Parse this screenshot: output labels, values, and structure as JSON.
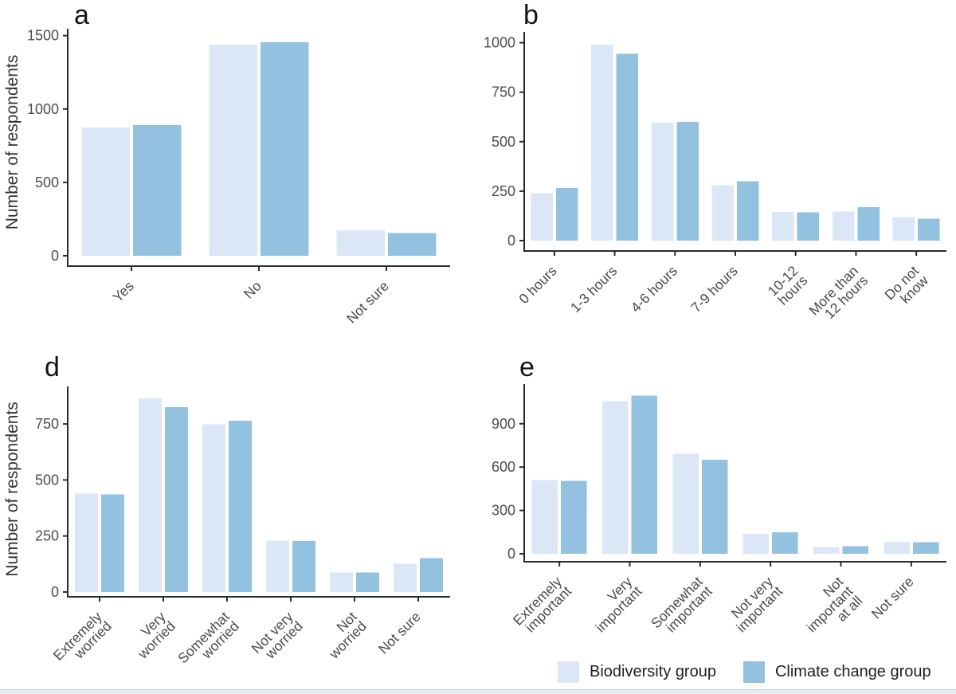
{
  "page": {
    "background": "#ffffff",
    "description": "Four grouped bar charts (panels a, b, d, e) comparing survey responses of two groups"
  },
  "colors": {
    "biodiversity": "#dbe7f6",
    "climate": "#93c1e0",
    "axis": "#2b2b2b",
    "tick_label": "#4d4d4d",
    "axis_title": "#333333"
  },
  "legend": {
    "items": [
      {
        "label": "Biodiversity group",
        "color_key": "biodiversity"
      },
      {
        "label": "Climate change group",
        "color_key": "climate"
      }
    ]
  },
  "chart_data": [
    {
      "panel_label": "a",
      "type": "bar",
      "ylabel": "Number of respondents",
      "categories": [
        [
          "Yes"
        ],
        [
          "No"
        ],
        [
          "Not sure"
        ]
      ],
      "series": [
        {
          "name": "Biodiversity group",
          "values": [
            875,
            1440,
            175
          ]
        },
        {
          "name": "Climate change group",
          "values": [
            890,
            1455,
            155
          ]
        }
      ],
      "yticks": [
        0,
        500,
        1000,
        1500
      ],
      "ylim": [
        0,
        1580
      ],
      "grid": false,
      "legend_position": "shared-bottom-right"
    },
    {
      "panel_label": "b",
      "type": "bar",
      "ylabel": "",
      "categories": [
        [
          "0 hours"
        ],
        [
          "1-3 hours"
        ],
        [
          "4-6 hours"
        ],
        [
          "7-9 hours"
        ],
        [
          "10-12",
          "hours"
        ],
        [
          "More than",
          "12 hours"
        ],
        [
          "Do not",
          "know"
        ]
      ],
      "series": [
        {
          "name": "Biodiversity group",
          "values": [
            240,
            990,
            595,
            280,
            145,
            147,
            118
          ]
        },
        {
          "name": "Climate change group",
          "values": [
            265,
            945,
            600,
            300,
            142,
            170,
            110
          ]
        }
      ],
      "yticks": [
        0,
        250,
        500,
        750,
        1000
      ],
      "ylim": [
        0,
        1055
      ],
      "grid": false,
      "legend_position": "shared-bottom-right"
    },
    {
      "panel_label": "d",
      "type": "bar",
      "ylabel": "Number of respondents",
      "categories": [
        [
          "Extremely",
          "worried"
        ],
        [
          "Very",
          "worried"
        ],
        [
          "Somewhat",
          "worried"
        ],
        [
          "Not very",
          "worried"
        ],
        [
          "Not",
          "worried"
        ],
        [
          "Not sure"
        ]
      ],
      "series": [
        {
          "name": "Biodiversity group",
          "values": [
            440,
            865,
            748,
            230,
            88,
            127
          ]
        },
        {
          "name": "Climate change group",
          "values": [
            435,
            825,
            765,
            228,
            88,
            152
          ]
        }
      ],
      "yticks": [
        0,
        250,
        500,
        750
      ],
      "ylim": [
        0,
        915
      ],
      "grid": false,
      "legend_position": "shared-bottom-right"
    },
    {
      "panel_label": "e",
      "type": "bar",
      "ylabel": "",
      "categories": [
        [
          "Extremely",
          "important"
        ],
        [
          "Very",
          "important"
        ],
        [
          "Somewhat",
          "important"
        ],
        [
          "Not very",
          "important"
        ],
        [
          "Not",
          "important",
          "at all"
        ],
        [
          "Not sure"
        ]
      ],
      "series": [
        {
          "name": "Biodiversity group",
          "values": [
            510,
            1055,
            693,
            138,
            47,
            84
          ]
        },
        {
          "name": "Climate change group",
          "values": [
            505,
            1095,
            650,
            148,
            53,
            80
          ]
        }
      ],
      "yticks": [
        0,
        300,
        600,
        900
      ],
      "ylim": [
        0,
        1175
      ],
      "grid": false,
      "legend_position": "shared-bottom-right"
    }
  ]
}
